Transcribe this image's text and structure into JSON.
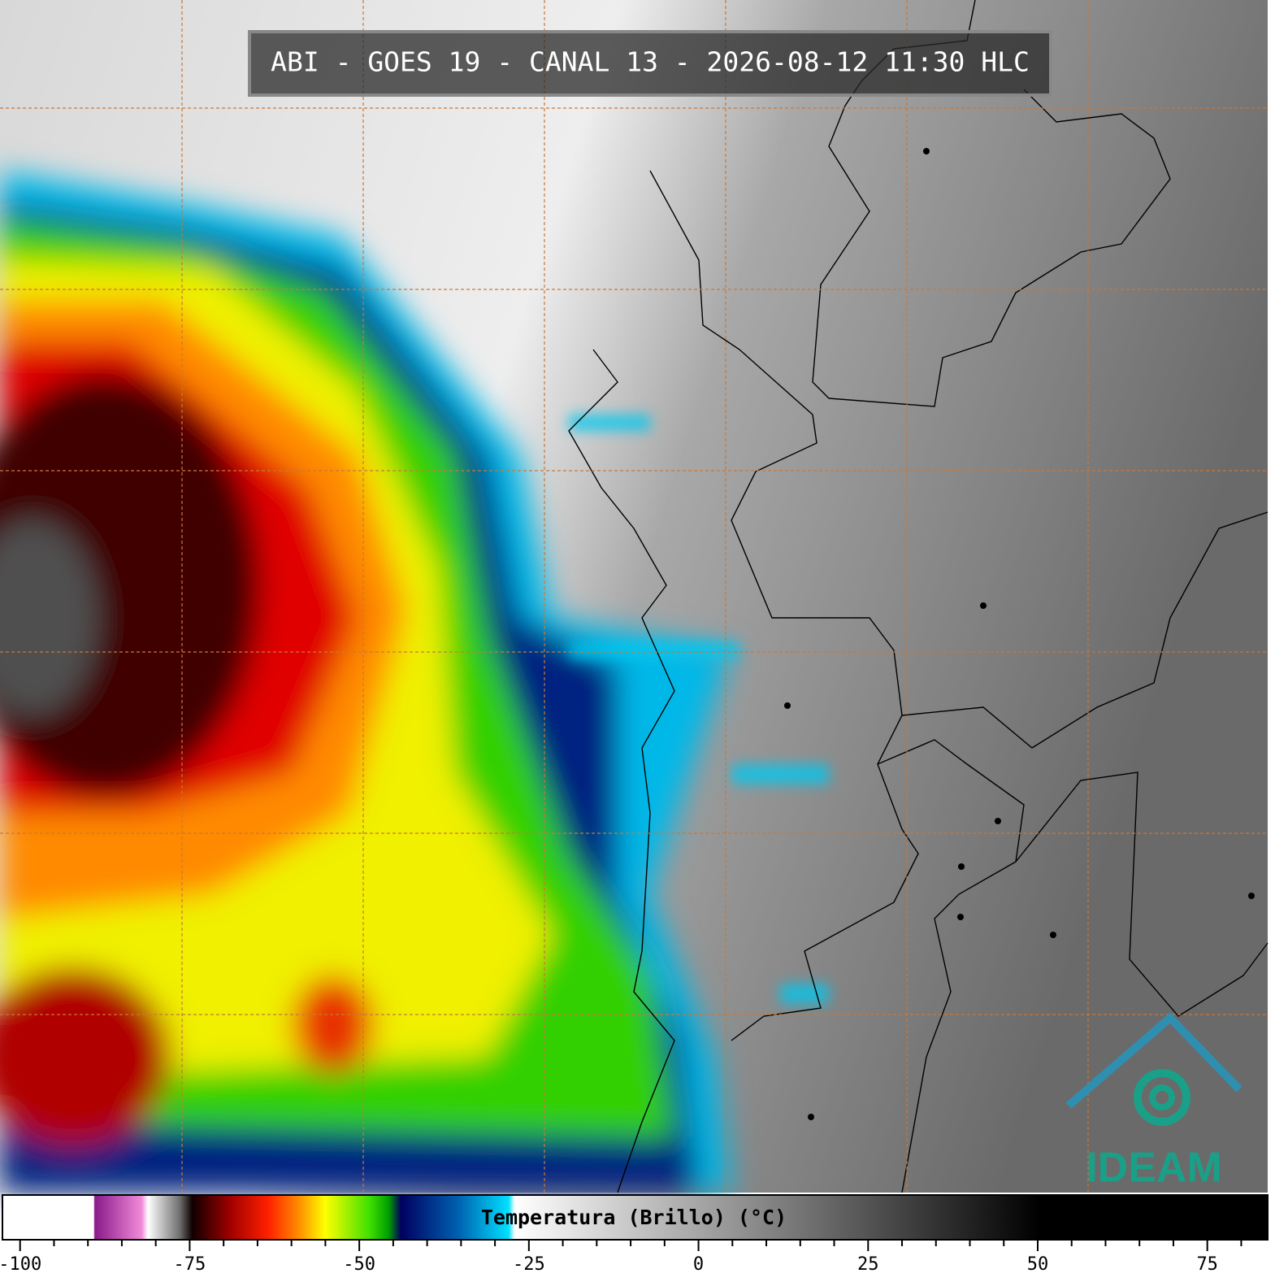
{
  "header": {
    "title": "ABI - GOES 19 - CANAL 13 - 2026-08-12 11:30 HLC"
  },
  "colorbar": {
    "label": "Temperatura (Brillo) (°C)",
    "lim": [
      -102.6,
      83.9
    ],
    "ticks": [
      -100,
      -75,
      -50,
      -25,
      0,
      25,
      50,
      75
    ],
    "minor_ticks": [
      -95,
      -90,
      -85,
      -80,
      -70,
      -65,
      -60,
      -55,
      -45,
      -40,
      -35,
      -30,
      -20,
      -15,
      -10,
      -5,
      5,
      10,
      15,
      20,
      30,
      35,
      40,
      45,
      55,
      60,
      65,
      70,
      80
    ]
  },
  "logo": {
    "text": "IDEAM"
  }
}
